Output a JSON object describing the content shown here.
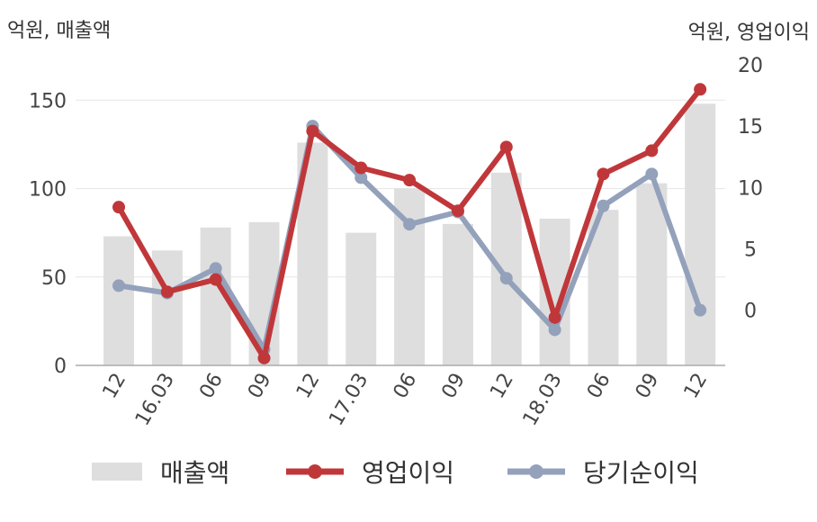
{
  "units": {
    "left": "억원, 매출액",
    "right": "억원, 영업이익"
  },
  "chart_data": {
    "type": "bar+line",
    "categories": [
      "12",
      "16.03",
      "06",
      "09",
      "12",
      "17.03",
      "06",
      "09",
      "12",
      "18.03",
      "06",
      "09",
      "12"
    ],
    "left_axis": {
      "ylim": [
        0,
        170
      ],
      "ticks": [
        0,
        50,
        100,
        150
      ]
    },
    "right_axis": {
      "ylim": [
        -4.5,
        20
      ],
      "ticks": [
        0,
        5,
        10,
        15,
        20
      ]
    },
    "grid": true,
    "legend_position": "bottom",
    "series": [
      {
        "name": "매출액",
        "type": "bar",
        "axis": "left",
        "color": "#dedede",
        "values": [
          73,
          65,
          78,
          81,
          126,
          75,
          100,
          80,
          109,
          83,
          88,
          103,
          148
        ]
      },
      {
        "name": "영업이익",
        "type": "line",
        "axis": "right",
        "color": "#c0373a",
        "values": [
          8.4,
          1.5,
          2.5,
          -3.9,
          14.6,
          11.6,
          10.6,
          8.1,
          13.3,
          -0.6,
          11.1,
          13.0,
          18.0
        ]
      },
      {
        "name": "당기순이익",
        "type": "line",
        "axis": "right",
        "color": "#93a1bb",
        "values": [
          2.0,
          1.4,
          3.4,
          -3.2,
          15.0,
          10.8,
          7.0,
          8.0,
          2.6,
          -1.6,
          8.5,
          11.1,
          0.0
        ]
      }
    ]
  }
}
